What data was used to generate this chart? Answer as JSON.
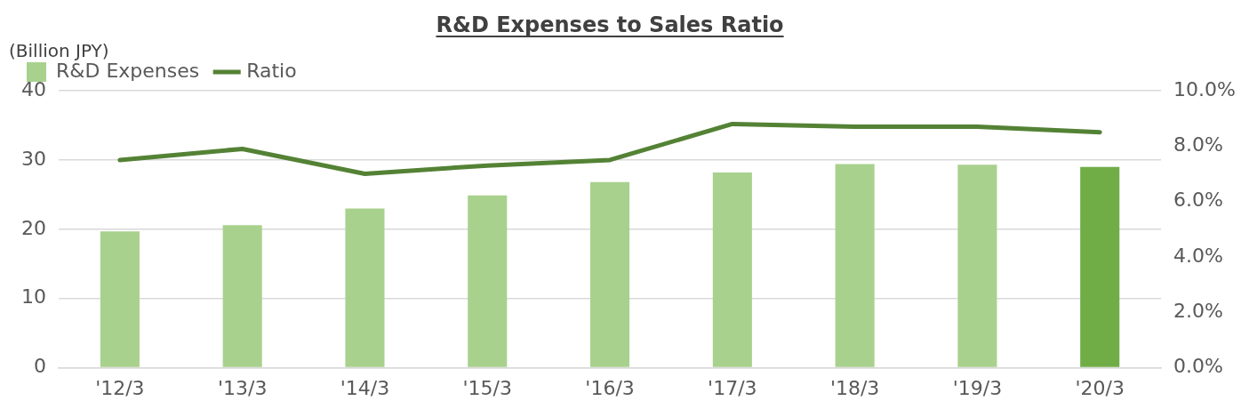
{
  "chart_data": {
    "type": "bar",
    "title": "R&D Expenses to Sales Ratio",
    "ylabel": "(Billion JPY)",
    "categories": [
      "'12/3",
      "'13/3",
      "'14/3",
      "'15/3",
      "'16/3",
      "'17/3",
      "'18/3",
      "'19/3",
      "'20/3"
    ],
    "series": [
      {
        "name": "R&D Expenses",
        "colors": [
          "#a9d18e",
          "#a9d18e",
          "#a9d18e",
          "#a9d18e",
          "#a9d18e",
          "#a9d18e",
          "#a9d18e",
          "#a9d18e",
          "#70ad47"
        ],
        "values": [
          19.7,
          20.6,
          23.0,
          24.9,
          26.8,
          28.2,
          29.4,
          29.3,
          29.0
        ]
      },
      {
        "name": "Ratio",
        "type": "line",
        "color": "#548235",
        "axis": "y2",
        "values": [
          7.5,
          7.9,
          7.0,
          7.3,
          7.5,
          8.8,
          8.7,
          8.7,
          8.5
        ]
      }
    ],
    "ylim": [
      0,
      40
    ],
    "yticks": [
      0,
      10,
      20,
      30,
      40
    ],
    "y2lim": [
      0,
      10
    ],
    "y2ticks": [
      {
        "value": 0,
        "label": "0.0%"
      },
      {
        "value": 2,
        "label": "2.0%"
      },
      {
        "value": 4,
        "label": "4.0%"
      },
      {
        "value": 6,
        "label": "6.0%"
      },
      {
        "value": 8,
        "label": "8.0%"
      },
      {
        "value": 10,
        "label": "10.0%"
      }
    ],
    "grid": "y",
    "legend": "top left",
    "marker": "none",
    "line_style": "solid"
  }
}
